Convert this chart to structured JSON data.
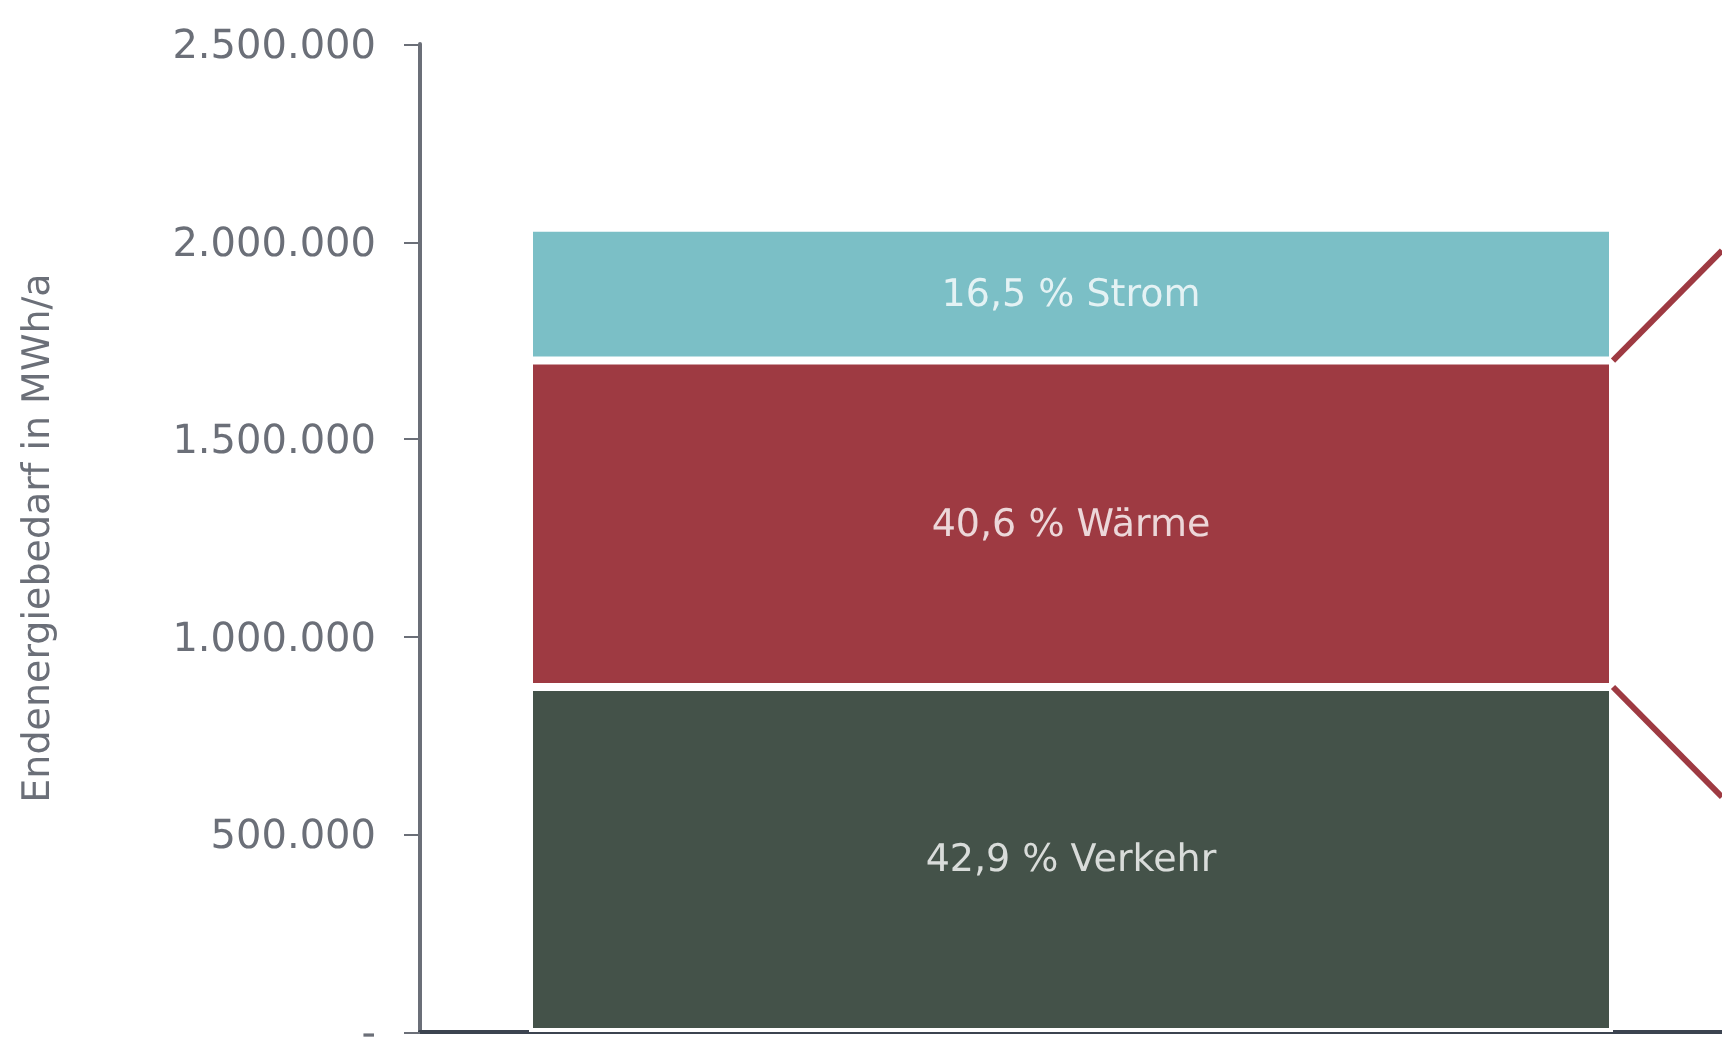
{
  "chart_data": {
    "type": "bar",
    "stacked": true,
    "ylabel": "Endenergiebedarf in MWh/a",
    "categories": [
      null
    ],
    "series": [
      {
        "color": "#445249",
        "values": [
          873000
        ]
      },
      {
        "color": "#9e3a42",
        "values": [
          826000
        ]
      },
      {
        "color": "#7bbfc6",
        "values": [
          336000
        ]
      }
    ],
    "annotations": [
      "42,9 % Verkehr",
      "40,6 % Wärme",
      "16,5 % Strom"
    ],
    "ylim": [
      0,
      2500000
    ],
    "yticks": [
      {
        "value": 0,
        "label": "-"
      },
      {
        "value": 500000,
        "label": "500.000"
      },
      {
        "value": 1000000,
        "label": "1.000.000"
      },
      {
        "value": 1500000,
        "label": "1.500.000"
      },
      {
        "value": 2000000,
        "label": "2.000.000"
      },
      {
        "value": 2500000,
        "label": "2.500.000"
      }
    ],
    "grid": false
  }
}
